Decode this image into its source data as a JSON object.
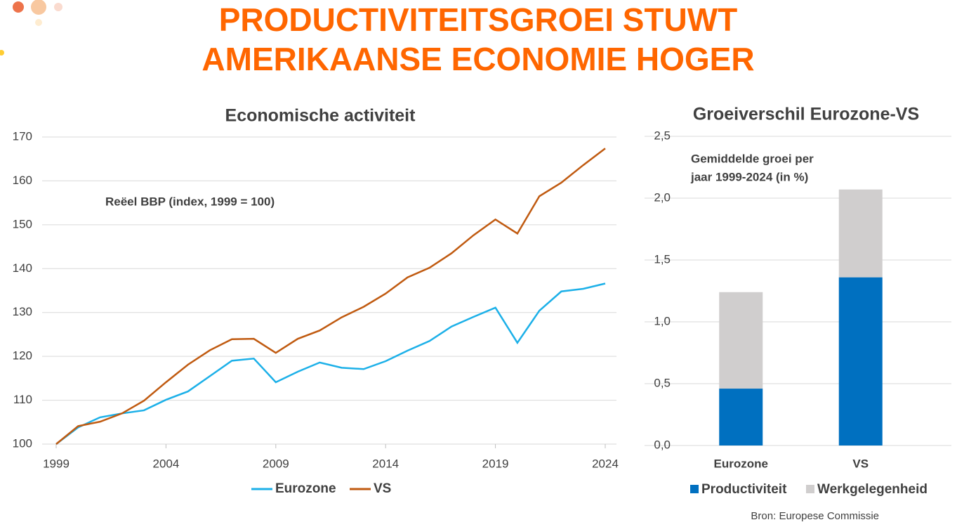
{
  "title_lines": [
    "PRODUCTIVITEITSGROEI STUWT",
    "AMERIKAANSE ECONOMIE HOGER"
  ],
  "source": "Bron: Europese Commissie",
  "chart_data": [
    {
      "type": "line",
      "title": "Economische activiteit",
      "annotation": "Reëel BBP (index, 1999 = 100)",
      "x": [
        1999,
        2000,
        2001,
        2002,
        2003,
        2004,
        2005,
        2006,
        2007,
        2008,
        2009,
        2010,
        2011,
        2012,
        2013,
        2014,
        2015,
        2016,
        2017,
        2018,
        2019,
        2020,
        2021,
        2022,
        2023,
        2024
      ],
      "series": [
        {
          "name": "Eurozone",
          "color": "#1cb0e8",
          "values": [
            100,
            103.8,
            106.1,
            107.0,
            107.7,
            110.1,
            112.0,
            115.5,
            119.0,
            119.5,
            114.1,
            116.5,
            118.6,
            117.4,
            117.1,
            118.9,
            121.3,
            123.5,
            126.8,
            129.0,
            131.1,
            123.1,
            130.4,
            134.8,
            135.4,
            136.6
          ]
        },
        {
          "name": "VS",
          "color": "#c05a10",
          "values": [
            100,
            104.1,
            105.1,
            107.0,
            109.9,
            114.1,
            118.1,
            121.4,
            123.9,
            124.0,
            120.8,
            124.0,
            125.9,
            128.9,
            131.3,
            134.3,
            138.0,
            140.2,
            143.5,
            147.6,
            151.2,
            148.0,
            156.5,
            159.6,
            163.6,
            167.4
          ]
        }
      ],
      "xlim": [
        1999,
        2024
      ],
      "xticks": [
        1999,
        2004,
        2009,
        2014,
        2019,
        2024
      ],
      "ylim": [
        100,
        170
      ],
      "yticks": [
        100,
        110,
        120,
        130,
        140,
        150,
        160,
        170
      ],
      "grid": true,
      "legend": "bottom"
    },
    {
      "type": "stacked-bar",
      "title": "Groeiverschil Eurozone-VS",
      "annotation": [
        "Gemiddelde groei per",
        "jaar 1999-2024 (in %)"
      ],
      "categories": [
        "Eurozone",
        "VS"
      ],
      "series": [
        {
          "name": "Productiviteit",
          "color": "#0070c0",
          "values": [
            0.46,
            1.36
          ]
        },
        {
          "name": "Werkgelegenheid",
          "color": "#d0cece",
          "values": [
            0.78,
            0.71
          ]
        }
      ],
      "ylim": [
        0,
        2.5
      ],
      "yticks": [
        {
          "value": 0,
          "label": "0,0"
        },
        {
          "value": 0.5,
          "label": "0,5"
        },
        {
          "value": 1,
          "label": "1,0"
        },
        {
          "value": 1.5,
          "label": "1,5"
        },
        {
          "value": 2,
          "label": "2,0"
        },
        {
          "value": 2.5,
          "label": "2,5"
        }
      ],
      "grid": true,
      "legend": "bottom"
    }
  ]
}
